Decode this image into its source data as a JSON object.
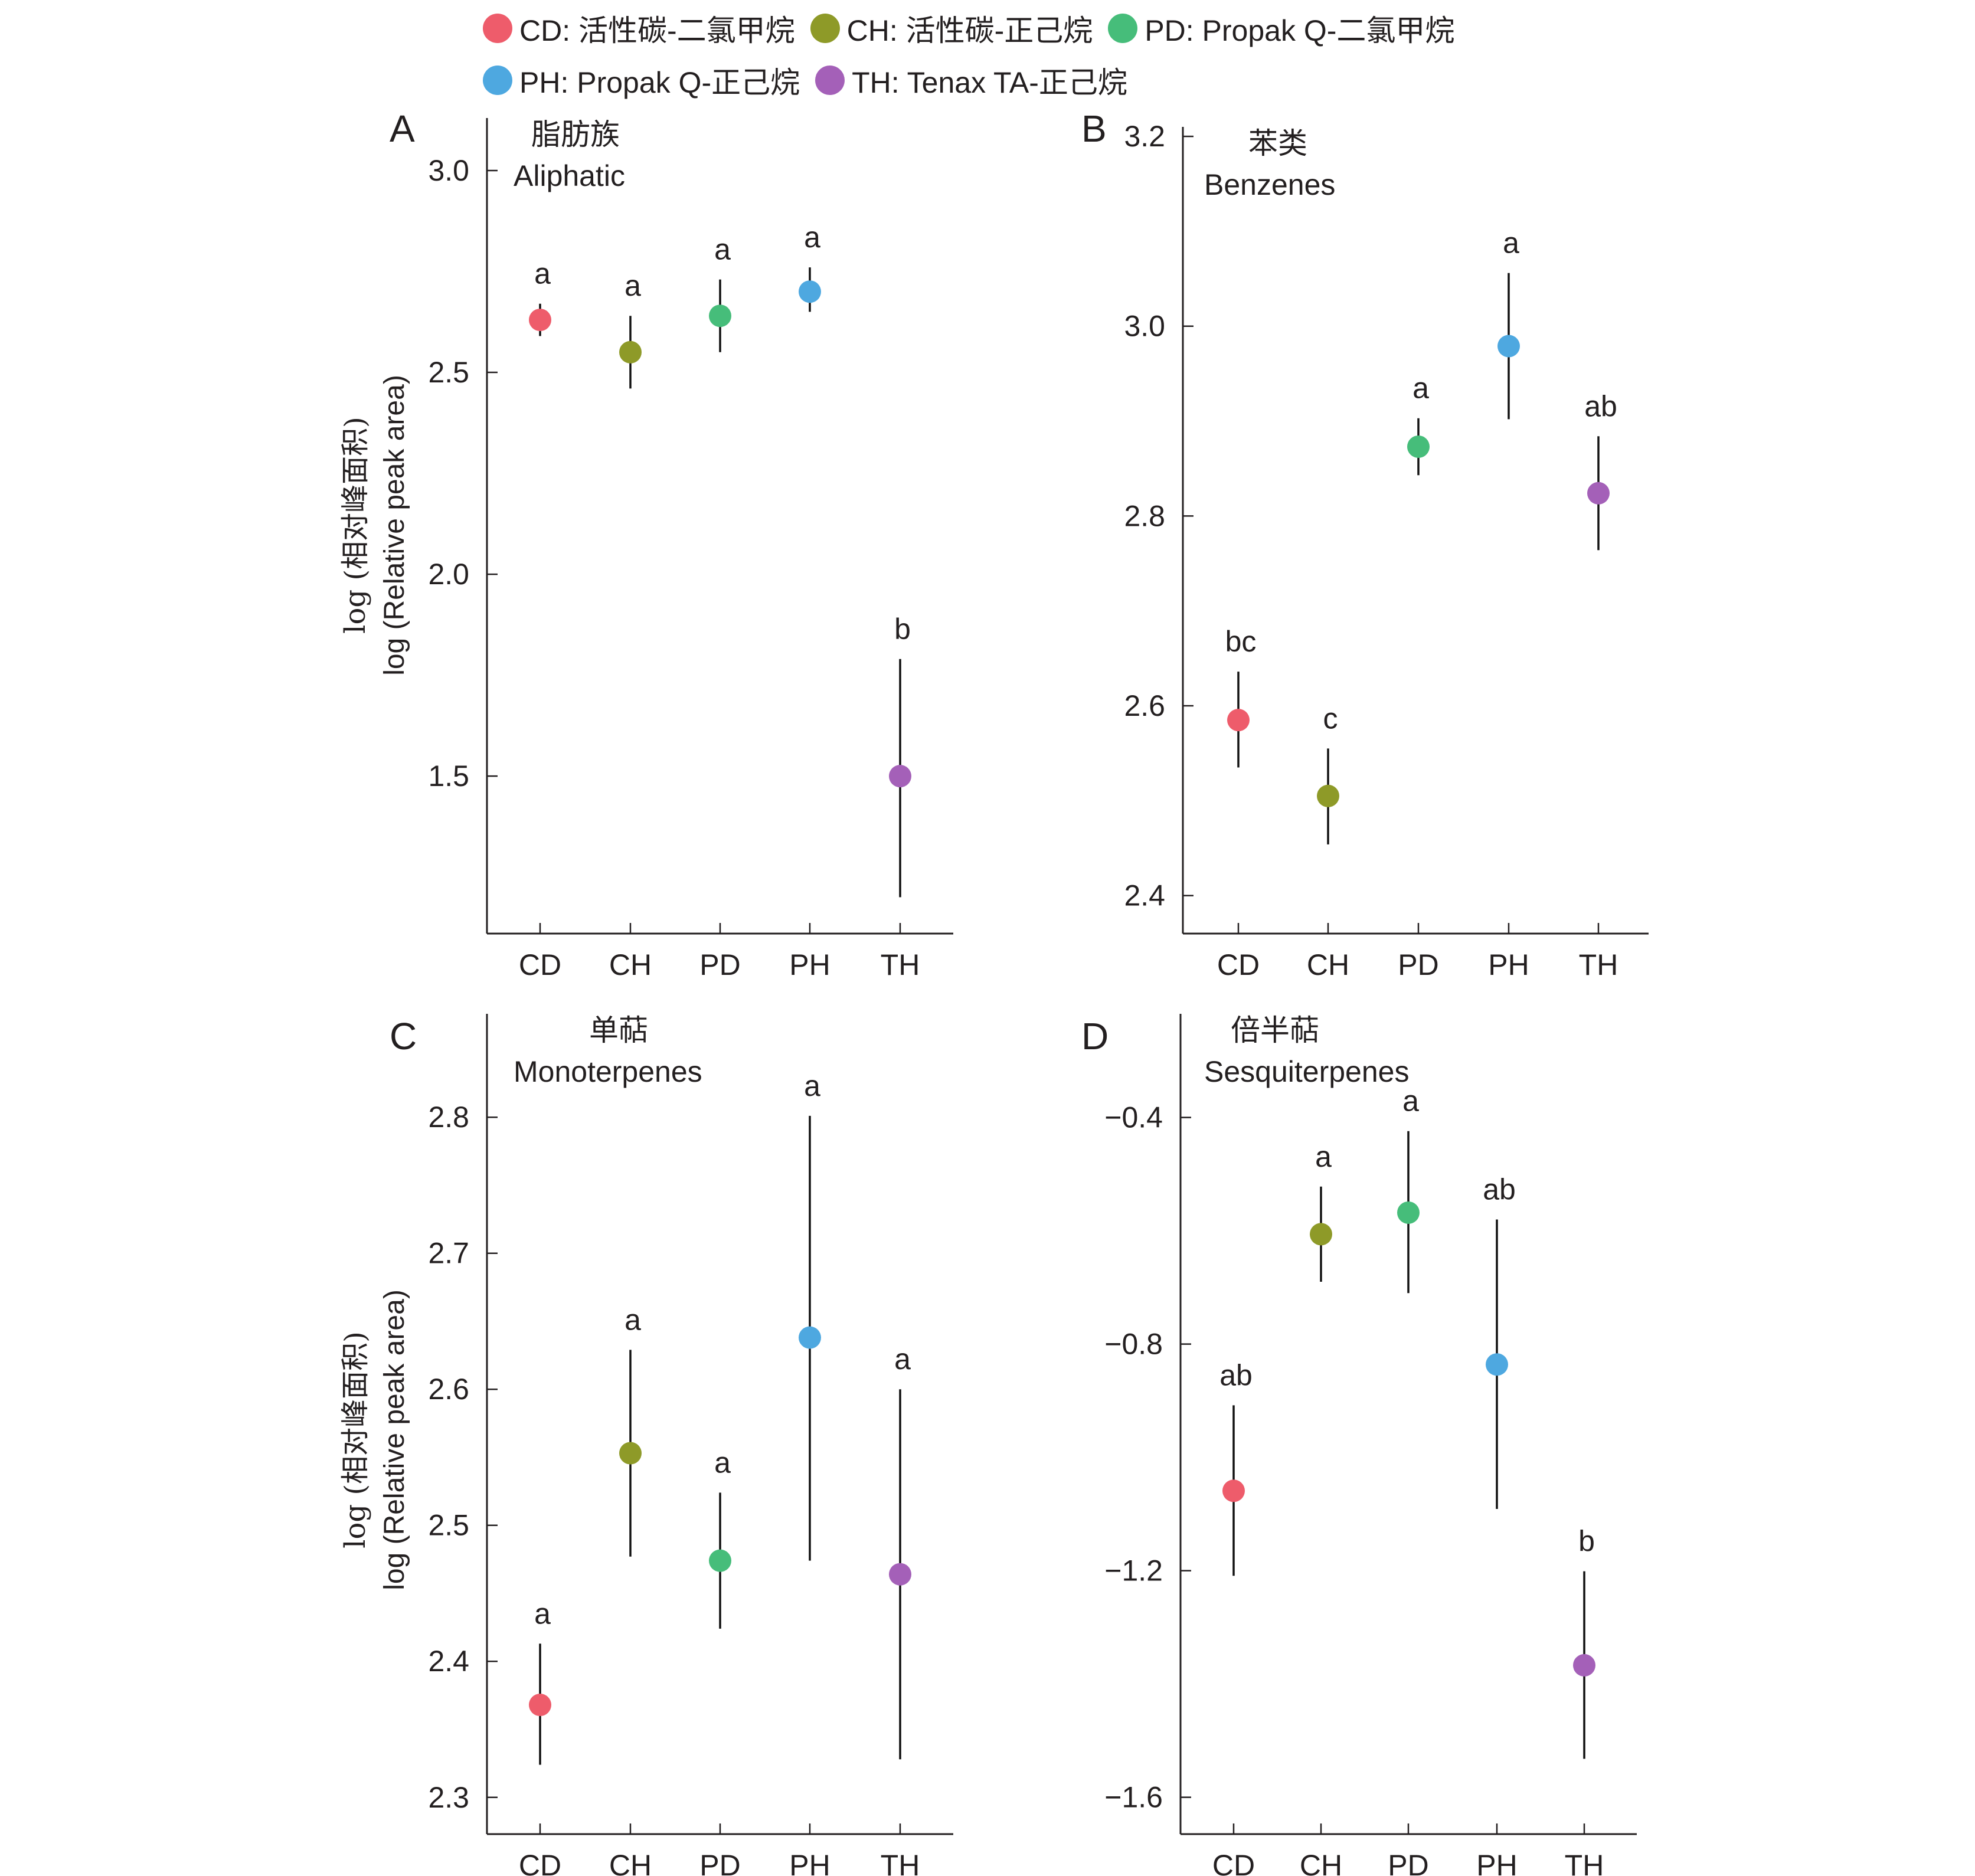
{
  "legend": [
    {
      "code": "CD",
      "label": "CD: 活性碳-二氯甲烷",
      "color": "#EE5C6B"
    },
    {
      "code": "CH",
      "label": "CH: 活性碳-正己烷",
      "color": "#8E9A28"
    },
    {
      "code": "PD",
      "label": "PD: Propak Q-二氯甲烷",
      "color": "#46BD7A"
    },
    {
      "code": "PH",
      "label": "PH: Propak Q-正己烷",
      "color": "#4EA8E0"
    },
    {
      "code": "TH",
      "label": "TH: Tenax TA-正己烷",
      "color": "#A460B8"
    }
  ],
  "ylabel_cn": "log (相对峰面积)",
  "ylabel_en": "log (Relative peak area)",
  "chart_data": [
    {
      "type": "scatter",
      "panel": "A",
      "title_cn": "脂肪族",
      "title_en": "Aliphatic",
      "categories": [
        "CD",
        "CH",
        "PD",
        "PH",
        "TH"
      ],
      "values": [
        2.63,
        2.55,
        2.64,
        2.7,
        1.5
      ],
      "error_low": [
        2.59,
        2.46,
        2.55,
        2.65,
        1.2
      ],
      "error_high": [
        2.67,
        2.64,
        2.73,
        2.76,
        1.79
      ],
      "significance": [
        "a",
        "a",
        "a",
        "a",
        "b"
      ],
      "yticks": [
        1.5,
        2.0,
        2.5,
        3.0
      ],
      "ytick_labels": [
        "1.5",
        "2.0",
        "2.5",
        "3.0"
      ],
      "ylim": [
        1.11,
        3.13
      ],
      "xlabel": "",
      "ylabel": "log (相对峰面积) / log (Relative peak area)",
      "grid": false
    },
    {
      "type": "scatter",
      "panel": "B",
      "title_cn": "苯类",
      "title_en": "Benzenes",
      "categories": [
        "CD",
        "CH",
        "PD",
        "PH",
        "TH"
      ],
      "values": [
        2.585,
        2.505,
        2.873,
        2.979,
        2.824
      ],
      "error_low": [
        2.535,
        2.454,
        2.843,
        2.902,
        2.764
      ],
      "error_high": [
        2.636,
        2.555,
        2.903,
        3.056,
        2.884
      ],
      "significance": [
        "bc",
        "c",
        "a",
        "a",
        "ab"
      ],
      "yticks": [
        2.4,
        2.6,
        2.8,
        3.0,
        3.2
      ],
      "ytick_labels": [
        "2.4",
        "2.6",
        "2.8",
        "3.0",
        "3.2"
      ],
      "ylim": [
        2.36,
        3.21
      ],
      "xlabel": "",
      "ylabel": "",
      "grid": false
    },
    {
      "type": "scatter",
      "panel": "C",
      "title_cn": "单萜",
      "title_en": "Monoterpenes",
      "categories": [
        "CD",
        "CH",
        "PD",
        "PH",
        "TH"
      ],
      "values": [
        2.368,
        2.553,
        2.474,
        2.638,
        2.464
      ],
      "error_low": [
        2.324,
        2.477,
        2.424,
        2.474,
        2.328
      ],
      "error_high": [
        2.413,
        2.629,
        2.524,
        2.801,
        2.6
      ],
      "significance": [
        "a",
        "a",
        "a",
        "a",
        "a"
      ],
      "yticks": [
        2.3,
        2.4,
        2.5,
        2.6,
        2.7,
        2.8
      ],
      "ytick_labels": [
        "2.3",
        "2.4",
        "2.5",
        "2.6",
        "2.7",
        "2.8"
      ],
      "ylim": [
        2.273,
        2.876
      ],
      "xlabel": "",
      "ylabel": "log (相对峰面积) / log (Relative peak area)",
      "grid": false
    },
    {
      "type": "scatter",
      "panel": "D",
      "title_cn": "倍半萜",
      "title_en": "Sesquiterpenes",
      "categories": [
        "CD",
        "CH",
        "PD",
        "PH",
        "TH"
      ],
      "values": [
        -1.059,
        -0.606,
        -0.568,
        -0.836,
        -1.367
      ],
      "error_low": [
        -1.209,
        -0.69,
        -0.71,
        -1.091,
        -1.532
      ],
      "error_high": [
        -0.908,
        -0.522,
        -0.424,
        -0.58,
        -1.201
      ],
      "significance": [
        "ab",
        "a",
        "a",
        "ab",
        "b"
      ],
      "yticks": [
        -1.6,
        -1.2,
        -0.8,
        -0.4
      ],
      "ytick_labels": [
        "−1.6",
        "−1.2",
        "−0.8",
        "−0.4"
      ],
      "ylim": [
        -1.665,
        -0.217
      ],
      "xlabel": "",
      "ylabel": "",
      "grid": false
    }
  ]
}
